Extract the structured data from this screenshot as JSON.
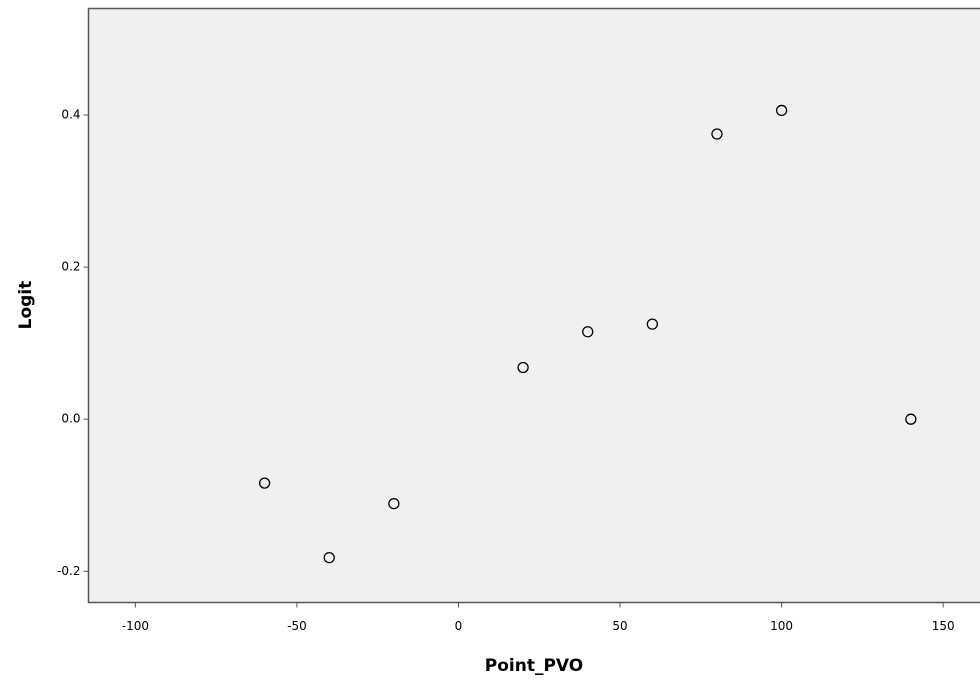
{
  "chart_data": {
    "type": "scatter",
    "x_label": "Point_PVO",
    "y_label": "Logit",
    "x": [
      -60,
      -40,
      -20,
      20,
      40,
      60,
      80,
      100,
      140
    ],
    "values": [
      -0.084,
      -0.182,
      -0.111,
      0.068,
      0.115,
      0.125,
      0.375,
      0.406,
      0.0
    ],
    "color": "#000000",
    "xlim": [
      -114.5,
      161.4
    ],
    "ylim": [
      -0.241,
      0.54
    ],
    "xticks": [
      -100,
      -50,
      0,
      50,
      100,
      150
    ],
    "yticks": [
      0.4,
      0.2,
      {
        "value": 0,
        "label": "0.0"
      },
      -0.2
    ],
    "grid": false
  }
}
